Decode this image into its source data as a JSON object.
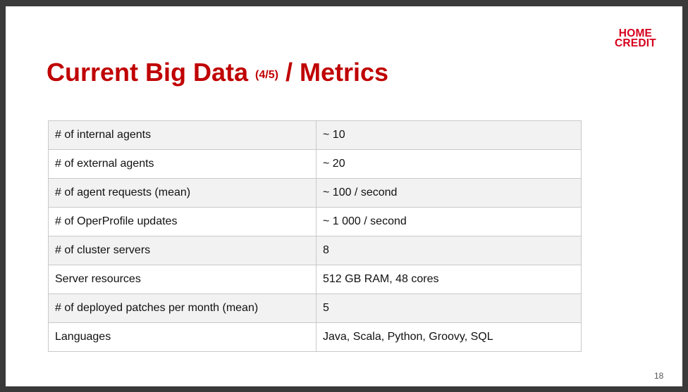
{
  "logo": {
    "line1": "HOME",
    "line2": "CREDIT"
  },
  "title": {
    "main": "Current Big Data ",
    "part": "(4/5)",
    "suffix": " / Metrics"
  },
  "metrics_table": {
    "rows": [
      {
        "label": "# of internal agents",
        "value": "~ 10"
      },
      {
        "label": "# of external agents",
        "value": "~ 20"
      },
      {
        "label": "# of agent requests (mean)",
        "value": "~ 100 / second"
      },
      {
        "label": "# of OperProfile updates",
        "value": "~ 1 000 / second"
      },
      {
        "label": "# of cluster servers",
        "value": "8"
      },
      {
        "label": "Server resources",
        "value": "512 GB RAM, 48 cores"
      },
      {
        "label": "# of deployed patches per month (mean)",
        "value": "5"
      },
      {
        "label": "Languages",
        "value": "Java, Scala, Python, Groovy, SQL"
      }
    ]
  },
  "page_number": "18",
  "colors": {
    "brand_red": "#d6001c",
    "title_red": "#c00000",
    "row_shade": "#f2f2f2"
  }
}
